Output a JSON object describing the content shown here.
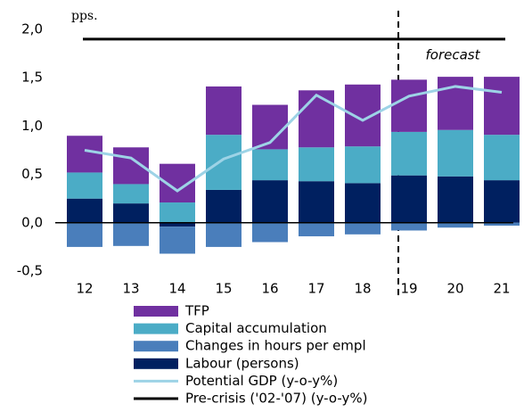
{
  "chart_data": {
    "type": "bar",
    "y_label": "pps.",
    "annotation": "forecast",
    "categories": [
      "12",
      "13",
      "14",
      "15",
      "16",
      "17",
      "18",
      "19",
      "20",
      "21"
    ],
    "ylim": [
      -0.5,
      2.0
    ],
    "yticks": [
      {
        "value": -0.5,
        "label": "-0,5"
      },
      {
        "value": 0.0,
        "label": "0,0"
      },
      {
        "value": 0.5,
        "label": "0,5"
      },
      {
        "value": 1.0,
        "label": "1,0"
      },
      {
        "value": 1.5,
        "label": "1,5"
      },
      {
        "value": 2.0,
        "label": "2,0"
      }
    ],
    "series": [
      {
        "name": "TFP",
        "color": "#7030a0",
        "values": [
          0.38,
          0.38,
          0.4,
          0.5,
          0.46,
          0.59,
          0.64,
          0.54,
          0.55,
          0.6
        ]
      },
      {
        "name": "Capital accumulation",
        "color": "#4bacc6",
        "values": [
          0.27,
          0.2,
          0.21,
          0.57,
          0.32,
          0.35,
          0.38,
          0.45,
          0.48,
          0.47
        ]
      },
      {
        "name": "Changes in hours per empl",
        "color": "#4a7ebb",
        "values": [
          -0.25,
          -0.24,
          -0.28,
          -0.25,
          -0.2,
          -0.14,
          -0.12,
          -0.08,
          -0.05,
          -0.03
        ]
      },
      {
        "name": "Labour (persons)",
        "color": "#002060",
        "values": [
          0.25,
          0.2,
          -0.04,
          0.34,
          0.44,
          0.43,
          0.41,
          0.49,
          0.48,
          0.44
        ]
      },
      {
        "name": "Potential GDP (y-o-y%)",
        "type": "line",
        "color": "#9dd3e6",
        "values": [
          0.75,
          0.67,
          0.33,
          0.66,
          0.83,
          1.32,
          1.06,
          1.31,
          1.41,
          1.35
        ]
      },
      {
        "name": "Pre-crisis ('02-'07) (y-o-y%)",
        "type": "line",
        "color": "#000000",
        "values": [
          1.9,
          1.9,
          1.9,
          1.9,
          1.9,
          1.9,
          1.9,
          1.9,
          1.9,
          1.9
        ]
      }
    ]
  }
}
